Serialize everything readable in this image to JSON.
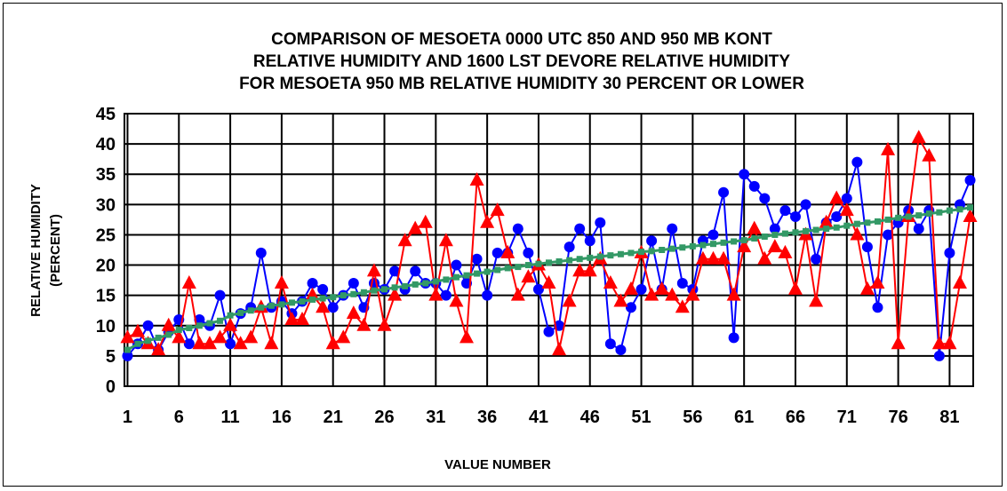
{
  "chart_data": {
    "type": "line",
    "title": [
      "COMPARISON OF MESOETA 0000 UTC 850 AND 950 MB KONT",
      "RELATIVE HUMIDITY AND 1600 LST DEVORE RELATIVE HUMIDITY",
      "FOR MESOETA 950 MB RELATIVE HUMIDITY 30 PERCENT OR LOWER"
    ],
    "xlabel": "VALUE NUMBER",
    "ylabel": [
      "RELATIVE HUMIDITY",
      "(PERCENT)"
    ],
    "xlim": [
      1,
      83
    ],
    "ylim": [
      0,
      45
    ],
    "x_ticks": [
      1,
      6,
      11,
      16,
      21,
      26,
      31,
      36,
      41,
      46,
      51,
      56,
      61,
      66,
      71,
      76,
      81
    ],
    "y_ticks": [
      0,
      5,
      10,
      15,
      20,
      25,
      30,
      35,
      40,
      45
    ],
    "grid": true,
    "legend": "none",
    "series": [
      {
        "color": "#0000ff",
        "marker": "circle",
        "values": [
          5,
          7,
          10,
          6,
          9,
          11,
          7,
          11,
          10,
          15,
          7,
          12,
          13,
          22,
          13,
          14,
          12,
          14,
          17,
          16,
          13,
          15,
          17,
          13,
          17,
          16,
          19,
          16,
          19,
          17,
          17,
          15,
          20,
          17,
          21,
          15,
          22,
          22,
          26,
          22,
          16,
          9,
          10,
          23,
          26,
          24,
          27,
          7,
          6,
          13,
          16,
          24,
          16,
          26,
          17,
          16,
          24,
          25,
          32,
          8,
          35,
          33,
          31,
          26,
          29,
          28,
          30,
          21,
          27,
          28,
          31,
          37,
          23,
          13,
          25,
          27,
          29,
          26,
          29,
          5,
          22,
          30,
          34
        ]
      },
      {
        "color": "#ff0000",
        "marker": "triangle",
        "values": [
          8,
          9,
          7,
          6,
          10,
          8,
          17,
          7,
          7,
          8,
          10,
          7,
          8,
          13,
          7,
          17,
          11,
          11,
          15,
          13,
          7,
          8,
          12,
          10,
          19,
          10,
          15,
          24,
          26,
          27,
          15,
          24,
          14,
          8,
          34,
          27,
          29,
          22,
          15,
          18,
          20,
          17,
          6,
          14,
          19,
          19,
          21,
          17,
          14,
          16,
          22,
          15,
          16,
          15,
          13,
          15,
          21,
          21,
          21,
          15,
          23,
          26,
          21,
          23,
          22,
          16,
          25,
          14,
          27,
          31,
          29,
          25,
          16,
          17,
          39,
          7,
          28,
          41,
          38,
          7,
          7,
          17,
          28
        ]
      },
      {
        "color": "#339966",
        "marker": "square",
        "values": [
          6,
          7,
          7.5,
          8,
          8.5,
          9.3,
          9.6,
          10,
          10.4,
          10.8,
          11.7,
          12.1,
          12.5,
          13,
          13.3,
          13.5,
          13.8,
          14,
          14.3,
          14.5,
          14.7,
          15,
          15.2,
          15.5,
          15.8,
          16,
          16.3,
          16.5,
          16.8,
          17,
          17.3,
          17.6,
          18,
          18.3,
          18.6,
          18.9,
          19.2,
          19.5,
          19.7,
          20,
          20.2,
          20.4,
          20.6,
          20.8,
          21,
          21.2,
          21.4,
          21.6,
          21.8,
          22,
          22.2,
          22.3,
          22.5,
          22.7,
          22.9,
          23.1,
          23.3,
          23.5,
          23.7,
          23.9,
          24.1,
          24.4,
          24.7,
          25,
          25.2,
          25.4,
          25.6,
          25.8,
          26,
          26.2,
          26.5,
          26.8,
          27,
          27.2,
          27.5,
          27.8,
          28,
          28.2,
          28.5,
          28.7,
          29,
          29.2,
          29.5
        ]
      }
    ]
  }
}
